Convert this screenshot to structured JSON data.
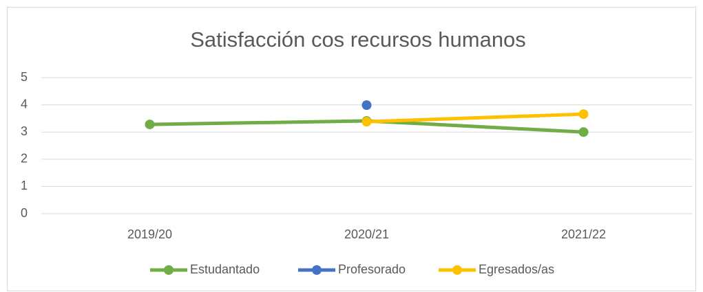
{
  "chart_data": {
    "type": "line",
    "title": "Satisfacción cos recursos humanos",
    "categories": [
      "2019/20",
      "2020/21",
      "2021/22"
    ],
    "series": [
      {
        "name": "Estudantado",
        "color": "#70ad47",
        "values": [
          3.28,
          3.41,
          3.0
        ]
      },
      {
        "name": "Profesorado",
        "color": "#4472c4",
        "values": [
          null,
          3.99,
          null
        ]
      },
      {
        "name": "Egresados/as",
        "color": "#ffc000",
        "values": [
          null,
          3.38,
          3.66
        ]
      }
    ],
    "ylim": [
      0,
      5
    ],
    "yticks": [
      0,
      1,
      2,
      3,
      4,
      5
    ],
    "grid": true,
    "legend": "bottom"
  }
}
